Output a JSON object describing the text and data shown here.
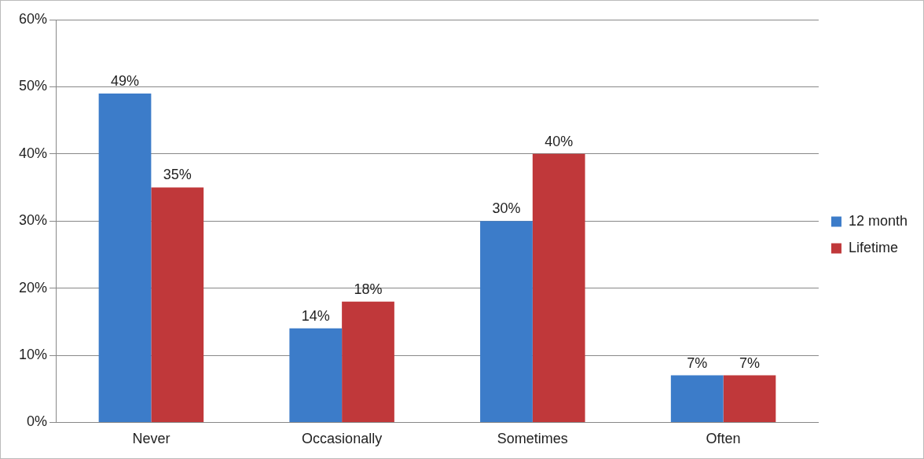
{
  "chart_data": {
    "type": "bar",
    "categories": [
      "Never",
      "Occasionally",
      "Sometimes",
      "Often"
    ],
    "series": [
      {
        "name": "12 month",
        "color": "#3c7cc9",
        "values": [
          49,
          14,
          30,
          7
        ],
        "value_labels": [
          "49%",
          "14%",
          "30%",
          "7%"
        ]
      },
      {
        "name": "Lifetime",
        "color": "#c0383a",
        "values": [
          35,
          18,
          40,
          7
        ],
        "value_labels": [
          "35%",
          "18%",
          "40%",
          "7%"
        ]
      }
    ],
    "ylim": [
      0,
      60
    ],
    "yticks": [
      {
        "value": 0,
        "label": "0%"
      },
      {
        "value": 10,
        "label": "10%"
      },
      {
        "value": 20,
        "label": "20%"
      },
      {
        "value": 30,
        "label": "30%"
      },
      {
        "value": 40,
        "label": "40%"
      },
      {
        "value": 50,
        "label": "50%"
      },
      {
        "value": 60,
        "label": "60%"
      }
    ],
    "grid": "y",
    "legend": "right"
  }
}
